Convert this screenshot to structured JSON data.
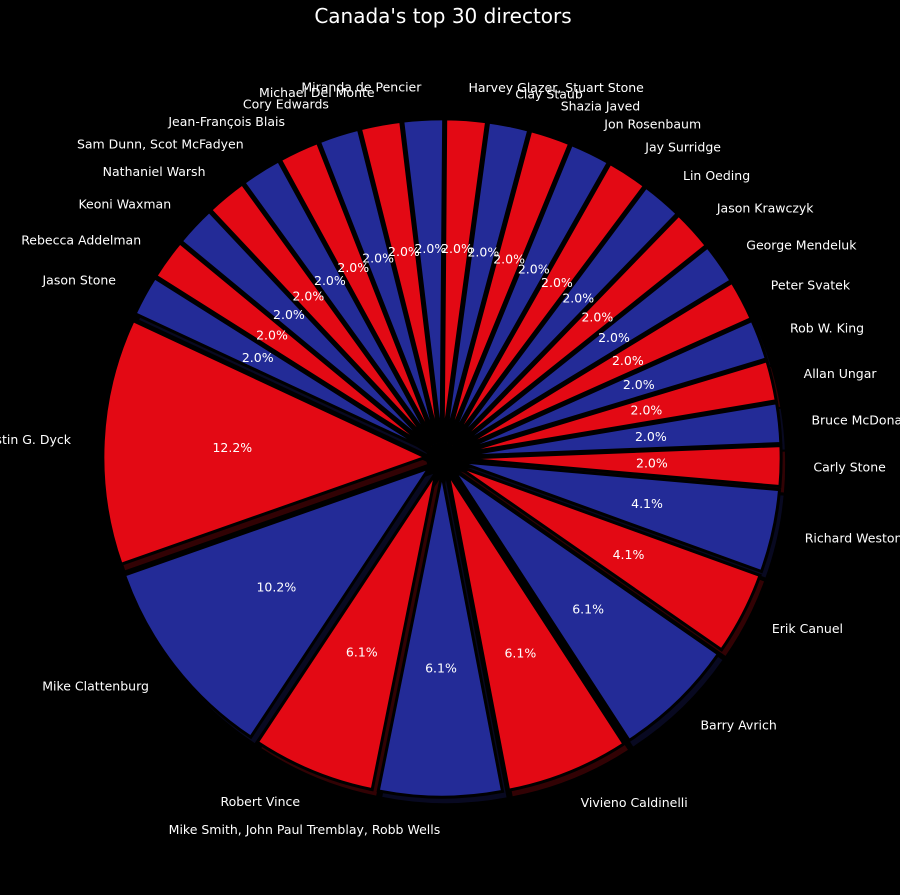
{
  "chart_data": {
    "type": "pie",
    "title": "Canada's top 30 directors",
    "start_angle_deg": 155,
    "direction": "counterclockwise",
    "colors": [
      "#e30914",
      "#232b97"
    ],
    "slices": [
      {
        "label": "Justin G. Dyck",
        "value": 12.2,
        "pct": "12.2%"
      },
      {
        "label": "Mike Clattenburg",
        "value": 10.2,
        "pct": "10.2%"
      },
      {
        "label": "Robert Vince",
        "value": 6.1,
        "pct": "6.1%"
      },
      {
        "label": "Mike Smith, John Paul Tremblay, Robb Wells",
        "value": 6.1,
        "pct": "6.1%"
      },
      {
        "label": "Vivieno Caldinelli",
        "value": 6.1,
        "pct": "6.1%"
      },
      {
        "label": "Barry Avrich",
        "value": 6.1,
        "pct": "6.1%"
      },
      {
        "label": "Erik Canuel",
        "value": 4.1,
        "pct": "4.1%"
      },
      {
        "label": "Richard Weston",
        "value": 4.1,
        "pct": "4.1%"
      },
      {
        "label": "Carly Stone",
        "value": 2.0,
        "pct": "2.0%"
      },
      {
        "label": "Bruce McDonald",
        "value": 2.0,
        "pct": "2.0%"
      },
      {
        "label": "Allan Ungar",
        "value": 2.0,
        "pct": "2.0%"
      },
      {
        "label": "Rob W. King",
        "value": 2.0,
        "pct": "2.0%"
      },
      {
        "label": "Peter Svatek",
        "value": 2.0,
        "pct": "2.0%"
      },
      {
        "label": "George Mendeluk",
        "value": 2.0,
        "pct": "2.0%"
      },
      {
        "label": "Jason Krawczyk",
        "value": 2.0,
        "pct": "2.0%"
      },
      {
        "label": "Lin Oeding",
        "value": 2.0,
        "pct": "2.0%"
      },
      {
        "label": "Jay Surridge",
        "value": 2.0,
        "pct": "2.0%"
      },
      {
        "label": "Jon Rosenbaum",
        "value": 2.0,
        "pct": "2.0%"
      },
      {
        "label": "Shazia Javed",
        "value": 2.0,
        "pct": "2.0%"
      },
      {
        "label": "Clay Staub",
        "value": 2.0,
        "pct": "2.0%"
      },
      {
        "label": "Harvey Glazer, Stuart Stone",
        "value": 2.0,
        "pct": "2.0%"
      },
      {
        "label": "Miranda de Pencier",
        "value": 2.0,
        "pct": "2.0%"
      },
      {
        "label": "Michael Del Monte",
        "value": 2.0,
        "pct": "2.0%"
      },
      {
        "label": "Cory Edwards",
        "value": 2.0,
        "pct": "2.0%"
      },
      {
        "label": "Jean-François Blais",
        "value": 2.0,
        "pct": "2.0%"
      },
      {
        "label": "Sam Dunn, Scot McFadyen",
        "value": 2.0,
        "pct": "2.0%"
      },
      {
        "label": "Nathaniel Warsh",
        "value": 2.0,
        "pct": "2.0%"
      },
      {
        "label": "Keoni Waxman",
        "value": 2.0,
        "pct": "2.0%"
      },
      {
        "label": "Rebecca Addelman",
        "value": 2.0,
        "pct": "2.0%"
      },
      {
        "label": "Jason Stone",
        "value": 2.0,
        "pct": "2.0%"
      }
    ]
  }
}
